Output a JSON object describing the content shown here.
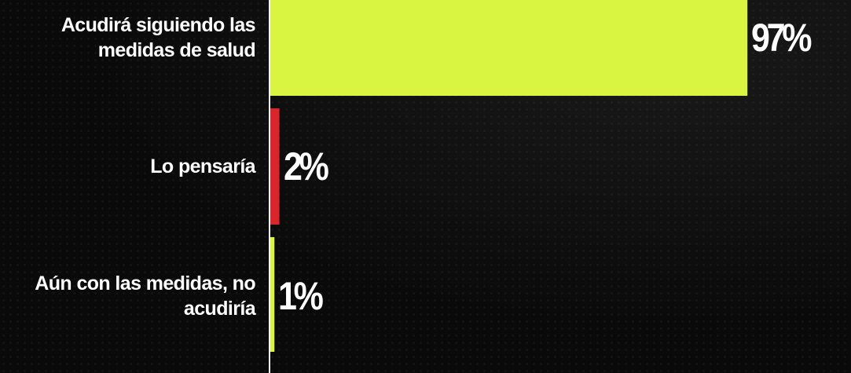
{
  "chart_data": {
    "type": "bar",
    "orientation": "horizontal",
    "categories": [
      "Acudirá siguiendo las medidas de salud",
      "Lo pensaría",
      "Aún con las medidas, no acudiría"
    ],
    "values": [
      97,
      2,
      1
    ],
    "value_labels": [
      "97%",
      "2%",
      "1%"
    ],
    "bar_colors": [
      "#d9f542",
      "#d8262b",
      "#d9f542"
    ],
    "xlim": [
      0,
      100
    ],
    "title": "",
    "xlabel": "",
    "ylabel": "",
    "grid": false
  },
  "colors": {
    "background": "#0a0a0a",
    "axis": "#ffffff",
    "text": "#ffffff"
  }
}
